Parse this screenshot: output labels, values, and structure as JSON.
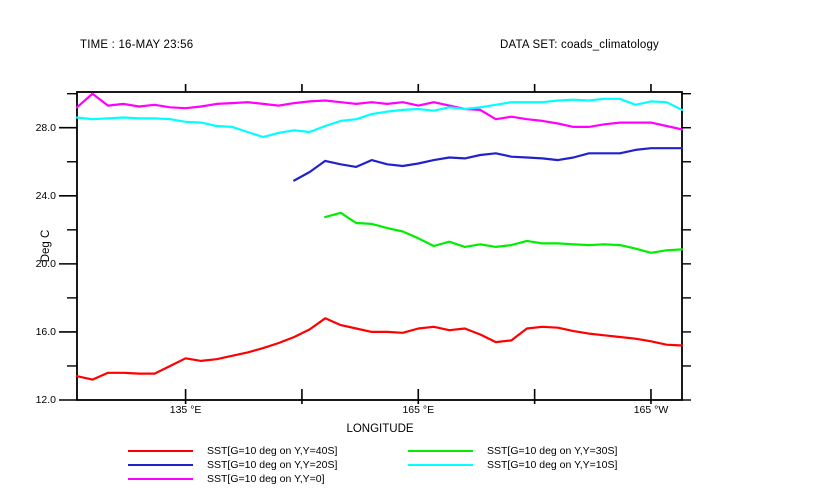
{
  "header": {
    "time_label": "TIME : 16-MAY 23:56",
    "dataset_label": "DATA SET: coads_climatology"
  },
  "chart_data": {
    "type": "line",
    "title": "",
    "xlabel": "LONGITUDE",
    "ylabel": "Deg C",
    "xlim": [
      121,
      199
    ],
    "ylim": [
      12,
      30.1
    ],
    "grid": false,
    "legend_position": "bottom",
    "x_ticks": [
      {
        "lon": 135,
        "label": "135 °E"
      },
      {
        "lon": 150,
        "label": ""
      },
      {
        "lon": 165,
        "label": "165 °E"
      },
      {
        "lon": 180,
        "label": ""
      },
      {
        "lon": 195,
        "label": "165 °W"
      }
    ],
    "y_ticks_major": [
      {
        "value": 12,
        "label": "12.0"
      },
      {
        "value": 16,
        "label": "16.0"
      },
      {
        "value": 20,
        "label": "20.0"
      },
      {
        "value": 24,
        "label": "24.0"
      },
      {
        "value": 28,
        "label": "28.0"
      }
    ],
    "y_ticks_minor": [
      14,
      18,
      22,
      26,
      30
    ],
    "y_ticks_right": [
      12,
      14,
      16,
      18,
      20,
      22,
      24,
      26,
      28,
      30
    ],
    "x_step": 2,
    "series": [
      {
        "name": "SST[G=10 deg on Y,Y=40S]",
        "color": "#ff0000",
        "x_start": 121,
        "values": [
          13.4,
          13.2,
          13.6,
          13.6,
          13.55,
          13.55,
          14.0,
          14.45,
          14.3,
          14.4,
          14.6,
          14.8,
          15.05,
          15.35,
          15.7,
          16.15,
          16.8,
          16.4,
          16.2,
          16.0,
          16.0,
          15.95,
          16.2,
          16.3,
          16.1,
          16.2,
          15.85,
          15.4,
          15.5,
          16.2,
          16.3,
          16.25,
          16.05,
          15.9,
          15.8,
          15.7,
          15.6,
          15.45,
          15.25,
          15.2
        ]
      },
      {
        "name": "SST[G=10 deg on Y,Y=20S]",
        "color": "#2222cc",
        "x_start": 149,
        "values": [
          24.9,
          25.4,
          26.05,
          25.85,
          25.7,
          26.1,
          25.85,
          25.75,
          25.9,
          26.1,
          26.25,
          26.2,
          26.4,
          26.5,
          26.3,
          26.25,
          26.2,
          26.1,
          26.25,
          26.5,
          26.5,
          26.5,
          26.7,
          26.8,
          26.8,
          26.8
        ]
      },
      {
        "name": "SST[G=10 deg on Y,Y=0]",
        "color": "#ff00ff",
        "x_start": 121,
        "values": [
          29.2,
          30.0,
          29.3,
          29.4,
          29.25,
          29.35,
          29.2,
          29.15,
          29.25,
          29.4,
          29.45,
          29.5,
          29.4,
          29.3,
          29.45,
          29.55,
          29.6,
          29.5,
          29.4,
          29.5,
          29.4,
          29.5,
          29.3,
          29.5,
          29.3,
          29.1,
          29.05,
          28.5,
          28.65,
          28.5,
          28.4,
          28.25,
          28.05,
          28.05,
          28.2,
          28.3,
          28.3,
          28.3,
          28.1,
          27.9
        ]
      },
      {
        "name": "SST[G=10 deg on Y,Y=30S]",
        "color": "#00ee00",
        "x_start": 153,
        "values": [
          22.75,
          23.0,
          22.4,
          22.35,
          22.1,
          21.9,
          21.5,
          21.05,
          21.3,
          21.0,
          21.15,
          21.0,
          21.1,
          21.35,
          21.2,
          21.2,
          21.15,
          21.1,
          21.15,
          21.1,
          20.9,
          20.65,
          20.8,
          20.85
        ]
      },
      {
        "name": "SST[G=10 deg on Y,Y=10S]",
        "color": "#00ffff",
        "x_start": 121,
        "values": [
          28.6,
          28.5,
          28.55,
          28.6,
          28.55,
          28.55,
          28.5,
          28.35,
          28.3,
          28.1,
          28.05,
          27.75,
          27.45,
          27.7,
          27.85,
          27.75,
          28.1,
          28.4,
          28.5,
          28.8,
          28.95,
          29.05,
          29.1,
          29.0,
          29.2,
          29.1,
          29.2,
          29.35,
          29.5,
          29.5,
          29.5,
          29.6,
          29.65,
          29.6,
          29.7,
          29.7,
          29.35,
          29.55,
          29.5,
          29.05
        ]
      }
    ]
  },
  "legend": {
    "columns": [
      {
        "entries": [
          {
            "label": "SST[G=10 deg on Y,Y=40S]",
            "color": "#ff0000"
          },
          {
            "label": "SST[G=10 deg on Y,Y=20S]",
            "color": "#2222cc"
          },
          {
            "label": "SST[G=10 deg on Y,Y=0]",
            "color": "#ff00ff"
          }
        ]
      },
      {
        "entries": [
          {
            "label": "SST[G=10 deg on Y,Y=30S]",
            "color": "#00ee00"
          },
          {
            "label": "SST[G=10 deg on Y,Y=10S]",
            "color": "#00ffff"
          }
        ]
      }
    ]
  }
}
